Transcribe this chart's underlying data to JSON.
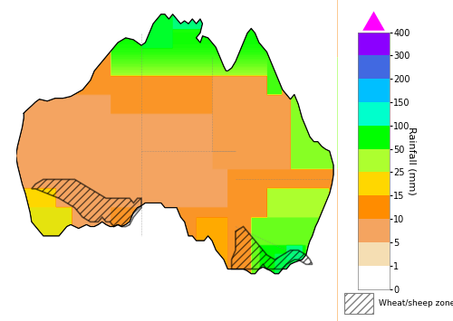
{
  "title": "",
  "colorbar_label": "Rainfall (mm)",
  "levels": [
    0,
    1,
    5,
    10,
    15,
    25,
    50,
    100,
    150,
    200,
    300,
    400
  ],
  "level_labels": [
    "0",
    "1",
    "5",
    "10",
    "15",
    "25",
    "50",
    "100",
    "150",
    "200",
    "300",
    "400"
  ],
  "colors": [
    "#ffffff",
    "#f5deb3",
    "#f4a460",
    "#ff8c00",
    "#ffd700",
    "#adff2f",
    "#00ff00",
    "#00ffcc",
    "#00bfff",
    "#4169e1",
    "#8b00ff",
    "#ff00ff"
  ],
  "arrow_color": "#ff00ff",
  "wheat_sheep_label": "Wheat/sheep zone",
  "background_color": "#ffffff",
  "fig_width": 5.0,
  "fig_height": 3.55,
  "dpi": 100
}
